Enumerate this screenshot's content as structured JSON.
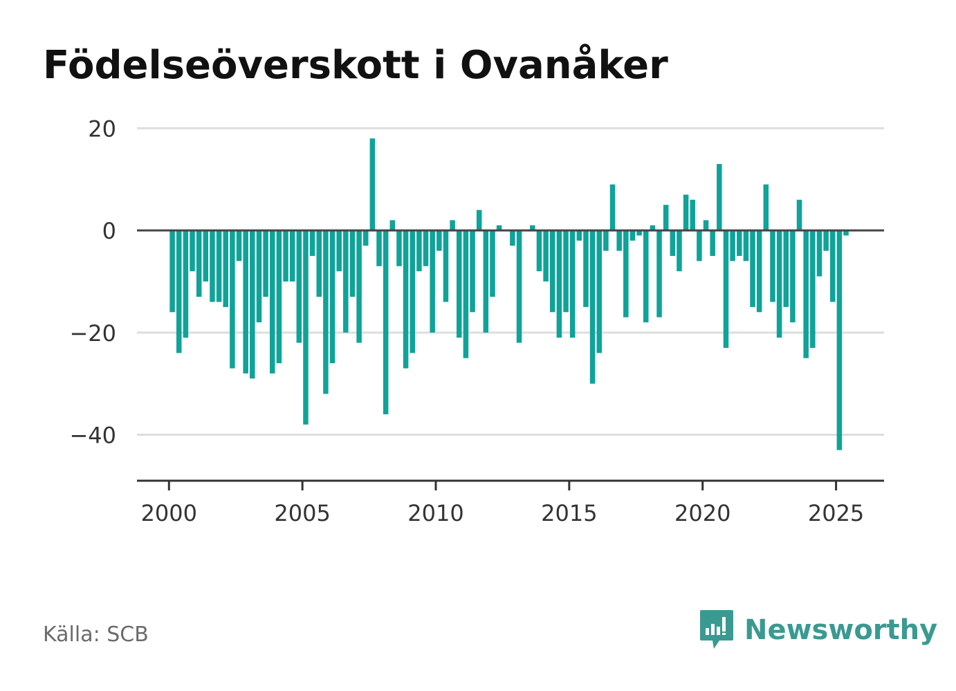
{
  "title": "Födelseöverskott i Ovanåker",
  "source": "Källa: SCB",
  "brand": {
    "name": "Newsworthy",
    "icon": "newsworthy-logo-icon",
    "color": "#3a9a91"
  },
  "colors": {
    "bar": "#0fa399",
    "grid": "#dddddd",
    "zero": "#444444",
    "axis": "#333333",
    "tick_text": "#333333"
  },
  "chart_data": {
    "type": "bar",
    "title": "Födelseöverskott i Ovanåker",
    "xlabel": "",
    "ylabel": "",
    "frequency": "quarterly",
    "x_start": 2000,
    "ylim": [
      -49,
      21
    ],
    "xlim": [
      1998.8,
      2026.8
    ],
    "grid": true,
    "legend": "none",
    "yticks": [
      20,
      0,
      -20,
      -40
    ],
    "ytick_labels": [
      "20",
      "0",
      "−20",
      "−40"
    ],
    "xticks": [
      2000,
      2005,
      2010,
      2015,
      2020,
      2025
    ],
    "xtick_labels": [
      "2000",
      "2005",
      "2010",
      "2015",
      "2020",
      "2025"
    ],
    "values": [
      -16,
      -24,
      -21,
      -8,
      -13,
      -10,
      -14,
      -14,
      -15,
      -27,
      -6,
      -28,
      -29,
      -18,
      -13,
      -28,
      -26,
      -10,
      -10,
      -22,
      -38,
      -5,
      -13,
      -32,
      -26,
      -8,
      -20,
      -13,
      -22,
      -3,
      18,
      -7,
      -36,
      2,
      -7,
      -27,
      -24,
      -8,
      -7,
      -20,
      -4,
      -14,
      2,
      -21,
      -25,
      -16,
      4,
      -20,
      -13,
      1,
      0,
      -3,
      -22,
      0,
      1,
      -8,
      -10,
      -16,
      -21,
      -16,
      -21,
      -2,
      -15,
      -30,
      -24,
      -4,
      9,
      -4,
      -17,
      -2,
      -1,
      -18,
      1,
      -17,
      5,
      -5,
      -8,
      7,
      6,
      -6,
      2,
      -5,
      13,
      -23,
      -6,
      -5,
      -6,
      -15,
      -16,
      9,
      -14,
      -21,
      -15,
      -18,
      6,
      -25,
      -23,
      -9,
      -4,
      -14,
      -43,
      -1
    ]
  }
}
